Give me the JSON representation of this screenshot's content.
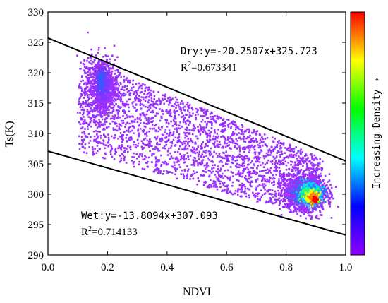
{
  "chart_data": {
    "type": "scatter",
    "xlabel": "NDVI",
    "ylabel": "Ts(K)",
    "xlim": [
      0.0,
      1.0
    ],
    "ylim": [
      290,
      330
    ],
    "x_ticks": [
      "0.0",
      "0.2",
      "0.4",
      "0.6",
      "0.8",
      "1.0"
    ],
    "y_ticks": [
      "290",
      "295",
      "300",
      "305",
      "310",
      "315",
      "320",
      "325",
      "330"
    ],
    "x_tick_values": [
      0.0,
      0.2,
      0.4,
      0.6,
      0.8,
      1.0
    ],
    "y_tick_values": [
      290,
      295,
      300,
      305,
      310,
      315,
      320,
      325,
      330
    ],
    "point_color": "#9b30ff",
    "clusters": [
      {
        "x": 0.18,
        "y": 318.0,
        "density": "high"
      },
      {
        "x": 0.88,
        "y": 300.0,
        "density": "highest"
      }
    ],
    "lines": [
      {
        "name": "Dry",
        "slope": -20.2507,
        "intercept": 325.723,
        "label": "Dry:y=-20.2507x+325.723",
        "r2_prefix": "R",
        "r2_exp": "2",
        "r2_value": "=0.673341"
      },
      {
        "name": "Wet",
        "slope": -13.8094,
        "intercept": 307.093,
        "label": "Wet:y=-13.8094x+307.093",
        "r2_prefix": "R",
        "r2_exp": "2",
        "r2_value": "=0.714133"
      }
    ],
    "colorbar": {
      "label": "Increasing Density →",
      "colors": [
        "#8b00ff",
        "#4b00ff",
        "#0000ff",
        "#0080ff",
        "#00ffff",
        "#00ff80",
        "#00ff00",
        "#80ff00",
        "#ffff00",
        "#ff8000",
        "#ff0000"
      ]
    }
  }
}
